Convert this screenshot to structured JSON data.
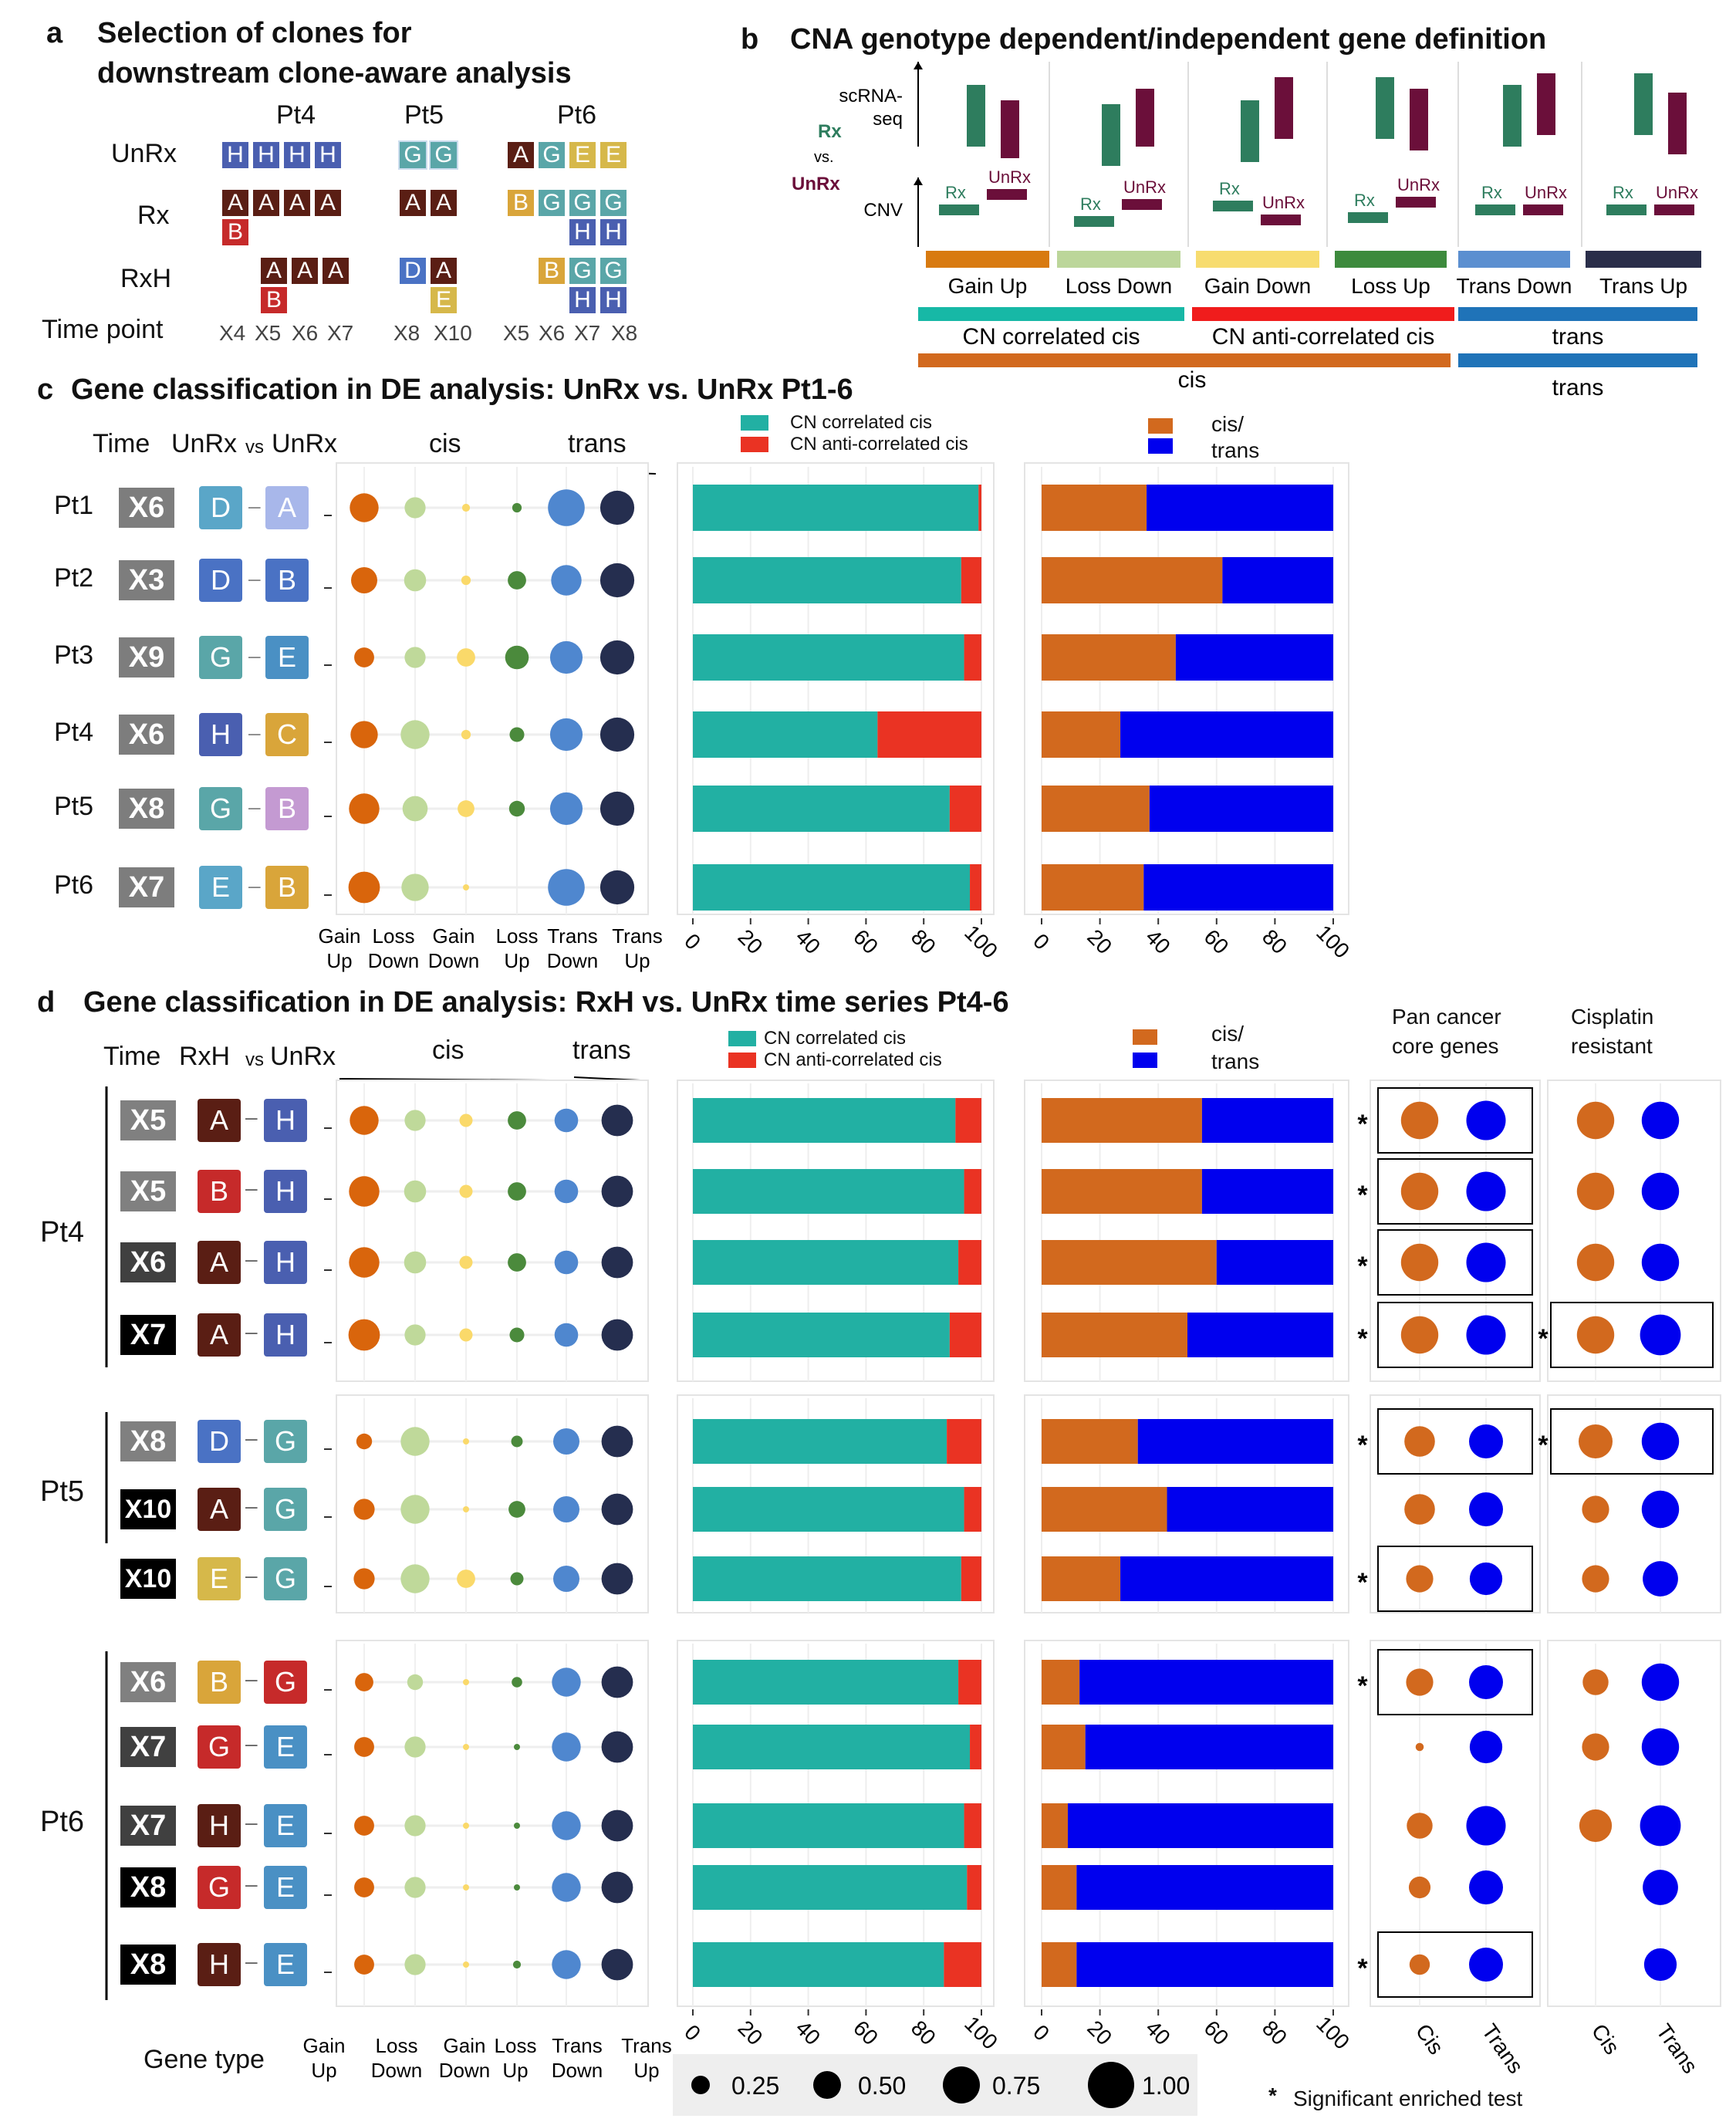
{
  "panel_a": {
    "letter": "a",
    "title_line1": "Selection of clones for",
    "title_line2": "downstream clone-aware analysis",
    "patients": [
      "Pt4",
      "Pt5",
      "Pt6"
    ],
    "rows": [
      "UnRx",
      "Rx",
      "RxH"
    ],
    "time_label": "Time point",
    "time_points": [
      "X4",
      "X5",
      "X6",
      "X7",
      "X8",
      "X10",
      "X5",
      "X6",
      "X7",
      "X8"
    ],
    "colors": {
      "A": "#5a1e14",
      "B": "#c62a2a",
      "C": "#d9a53a",
      "D": "#4a72c4",
      "E": "#d6b84a",
      "G": "#5aa6a8",
      "H": "#4a5fb0"
    }
  },
  "panel_b": {
    "letter": "b",
    "title": "CNA genotype dependent/independent gene definition",
    "axis_top": "scRNA-seq",
    "axis_bottom": "CNV",
    "rx_label": "Rx",
    "vs_label": "vs.",
    "unrx_label": "UnRx",
    "categories": [
      "Gain Up",
      "Loss Down",
      "Gain Down",
      "Loss Up",
      "Trans Down",
      "Trans Up"
    ],
    "cat_colors": [
      "#d87a10",
      "#bcd69a",
      "#f7dc6f",
      "#3d8a3d",
      "#5b8fd0",
      "#2a2e4a"
    ],
    "group1": [
      "CN correlated cis",
      "CN anti-correlated cis",
      "trans"
    ],
    "group2": [
      "cis",
      "trans"
    ],
    "rx_color": "#2e7d5e",
    "unrx_color": "#6b0f3a"
  },
  "panel_c": {
    "letter": "c",
    "title": "Gene classification in DE analysis: UnRx vs. UnRx Pt1-6",
    "col_headers": {
      "time": "Time",
      "left": "UnRx",
      "vs": "vs",
      "right": "UnRx",
      "cis": "cis",
      "trans": "trans"
    },
    "rows": [
      {
        "pt": "Pt1",
        "time": "X6",
        "c1": "D",
        "c2": "A"
      },
      {
        "pt": "Pt2",
        "time": "X3",
        "c1": "D",
        "c2": "B"
      },
      {
        "pt": "Pt3",
        "time": "X9",
        "c1": "G",
        "c2": "E"
      },
      {
        "pt": "Pt4",
        "time": "X6",
        "c1": "H",
        "c2": "C"
      },
      {
        "pt": "Pt5",
        "time": "X8",
        "c1": "G",
        "c2": "B"
      },
      {
        "pt": "Pt6",
        "time": "X7",
        "c1": "E",
        "c2": "B"
      }
    ]
  },
  "panel_d": {
    "letter": "d",
    "title": "Gene classification in DE analysis: RxH vs. UnRx time series Pt4-6",
    "col_headers": {
      "time": "Time",
      "left": "RxH",
      "vs": "vs",
      "right": "UnRx",
      "cis": "cis",
      "trans": "trans"
    },
    "pan_cancer": [
      "Pan cancer",
      "core genes"
    ],
    "cisplatin": [
      "Cisplatin",
      "resistant"
    ],
    "groups": [
      "Pt4",
      "Pt5",
      "Pt6"
    ],
    "rows": [
      {
        "time": "X5",
        "c1": "A",
        "c2": "H"
      },
      {
        "time": "X5",
        "c1": "B",
        "c2": "H"
      },
      {
        "time": "X6",
        "c1": "A",
        "c2": "H"
      },
      {
        "time": "X7",
        "c1": "A",
        "c2": "H"
      },
      {
        "time": "X8",
        "c1": "D",
        "c2": "G"
      },
      {
        "time": "X10",
        "c1": "A",
        "c2": "G"
      },
      {
        "time": "X10",
        "c1": "E",
        "c2": "G"
      },
      {
        "time": "X6",
        "c1": "B",
        "c2": "G"
      },
      {
        "time": "X7",
        "c1": "G",
        "c2": "E"
      },
      {
        "time": "X7",
        "c1": "H",
        "c2": "E"
      },
      {
        "time": "X8",
        "c1": "G",
        "c2": "E"
      },
      {
        "time": "X8",
        "c1": "H",
        "c2": "E"
      }
    ],
    "gene_type_label": "Gene type",
    "enrich_x": [
      "Cis",
      "Trans"
    ],
    "size_legend": [
      "0.25",
      "0.50",
      "0.75",
      "1.00"
    ],
    "sig_note": "Significant enriched test",
    "sig_mark": "*"
  },
  "legends": {
    "corr": "CN correlated cis",
    "anti": "CN anti-correlated cis",
    "cis": "cis/",
    "trans": "trans"
  },
  "chart_data": [
    {
      "type": "bar",
      "name": "c-corr",
      "categories": [
        "Pt1",
        "Pt2",
        "Pt3",
        "Pt4",
        "Pt5",
        "Pt6"
      ],
      "series": [
        {
          "name": "CN correlated cis",
          "values": [
            99,
            93,
            94,
            64,
            89,
            96
          ]
        },
        {
          "name": "CN anti-correlated cis",
          "values": [
            1,
            7,
            6,
            36,
            11,
            4
          ]
        }
      ],
      "xlim": [
        0,
        100
      ],
      "ticks": [
        "0",
        "20",
        "40",
        "60",
        "80",
        "100"
      ]
    },
    {
      "type": "bar",
      "name": "c-cis-trans",
      "categories": [
        "Pt1",
        "Pt2",
        "Pt3",
        "Pt4",
        "Pt5",
        "Pt6"
      ],
      "series": [
        {
          "name": "cis",
          "values": [
            36,
            62,
            46,
            27,
            37,
            35
          ]
        },
        {
          "name": "trans",
          "values": [
            64,
            38,
            54,
            73,
            63,
            65
          ]
        }
      ],
      "xlim": [
        0,
        100
      ],
      "ticks": [
        "0",
        "20",
        "40",
        "60",
        "80",
        "100"
      ]
    },
    {
      "type": "scatter",
      "name": "c-dots",
      "x": [
        "Gain Up",
        "Loss Down",
        "Gain Down",
        "Loss Up",
        "Trans Down",
        "Trans Up"
      ],
      "sizes": [
        [
          0.55,
          0.4,
          0.15,
          0.18,
          0.7,
          0.65
        ],
        [
          0.5,
          0.42,
          0.18,
          0.35,
          0.58,
          0.65
        ],
        [
          0.38,
          0.4,
          0.35,
          0.45,
          0.62,
          0.65
        ],
        [
          0.52,
          0.55,
          0.18,
          0.28,
          0.62,
          0.65
        ],
        [
          0.58,
          0.48,
          0.32,
          0.3,
          0.62,
          0.65
        ],
        [
          0.6,
          0.52,
          0.08,
          0.0,
          0.7,
          0.65
        ]
      ]
    },
    {
      "type": "bar",
      "name": "d-corr",
      "series": [
        {
          "name": "CN correlated cis",
          "values": [
            91,
            94,
            92,
            89,
            88,
            94,
            93,
            92,
            96,
            94,
            95,
            87
          ]
        },
        {
          "name": "CN anti-correlated cis",
          "values": [
            9,
            6,
            8,
            11,
            12,
            6,
            7,
            8,
            4,
            6,
            5,
            13
          ]
        }
      ],
      "xlim": [
        0,
        100
      ],
      "ticks": [
        "0",
        "20",
        "40",
        "60",
        "80",
        "100"
      ]
    },
    {
      "type": "bar",
      "name": "d-cis-trans",
      "series": [
        {
          "name": "cis",
          "values": [
            55,
            55,
            60,
            50,
            33,
            43,
            27,
            13,
            15,
            9,
            12,
            12
          ]
        },
        {
          "name": "trans",
          "values": [
            45,
            45,
            40,
            50,
            67,
            57,
            73,
            87,
            85,
            91,
            88,
            88
          ]
        }
      ],
      "xlim": [
        0,
        100
      ],
      "ticks": [
        "0",
        "20",
        "40",
        "60",
        "80",
        "100"
      ]
    },
    {
      "type": "scatter",
      "name": "d-dots",
      "x": [
        "Gain Up",
        "Loss Down",
        "Gain Down",
        "Loss Up",
        "Trans Down",
        "Trans Up"
      ],
      "sizes": [
        [
          0.55,
          0.4,
          0.25,
          0.35,
          0.45,
          0.6
        ],
        [
          0.58,
          0.42,
          0.25,
          0.35,
          0.45,
          0.6
        ],
        [
          0.58,
          0.42,
          0.25,
          0.35,
          0.45,
          0.6
        ],
        [
          0.6,
          0.4,
          0.25,
          0.28,
          0.45,
          0.6
        ],
        [
          0.3,
          0.55,
          0.1,
          0.22,
          0.5,
          0.6
        ],
        [
          0.4,
          0.55,
          0.08,
          0.32,
          0.5,
          0.6
        ],
        [
          0.4,
          0.55,
          0.35,
          0.25,
          0.5,
          0.6
        ],
        [
          0.35,
          0.3,
          0.05,
          0.2,
          0.55,
          0.6
        ],
        [
          0.38,
          0.4,
          0.05,
          0.08,
          0.55,
          0.6
        ],
        [
          0.38,
          0.4,
          0.05,
          0.1,
          0.55,
          0.6
        ],
        [
          0.38,
          0.4,
          0.05,
          0.08,
          0.55,
          0.6
        ],
        [
          0.38,
          0.4,
          0.05,
          0.15,
          0.55,
          0.6
        ]
      ]
    },
    {
      "type": "scatter",
      "name": "d-pan-cancer",
      "x": [
        "Cis",
        "Trans"
      ],
      "sizes": [
        [
          0.55,
          0.58
        ],
        [
          0.55,
          0.58
        ],
        [
          0.55,
          0.58
        ],
        [
          0.55,
          0.58
        ],
        [
          0.45,
          0.5
        ],
        [
          0.45,
          0.5
        ],
        [
          0.4,
          0.48
        ],
        [
          0.4,
          0.5
        ],
        [
          0.12,
          0.48
        ],
        [
          0.38,
          0.58
        ],
        [
          0.32,
          0.5
        ],
        [
          0.3,
          0.5
        ]
      ],
      "significant": [
        true,
        true,
        true,
        true,
        true,
        false,
        true,
        true,
        false,
        false,
        false,
        true
      ]
    },
    {
      "type": "scatter",
      "name": "d-cisplatin",
      "x": [
        "Cis",
        "Trans"
      ],
      "sizes": [
        [
          0.55,
          0.55
        ],
        [
          0.55,
          0.55
        ],
        [
          0.55,
          0.55
        ],
        [
          0.55,
          0.6
        ],
        [
          0.5,
          0.55
        ],
        [
          0.4,
          0.55
        ],
        [
          0.4,
          0.52
        ],
        [
          0.38,
          0.55
        ],
        [
          0.4,
          0.55
        ],
        [
          0.48,
          0.6
        ],
        [
          0.0,
          0.52
        ],
        [
          0.0,
          0.48
        ]
      ],
      "significant": [
        false,
        false,
        false,
        true,
        true,
        false,
        false,
        false,
        false,
        false,
        false,
        false
      ]
    }
  ]
}
